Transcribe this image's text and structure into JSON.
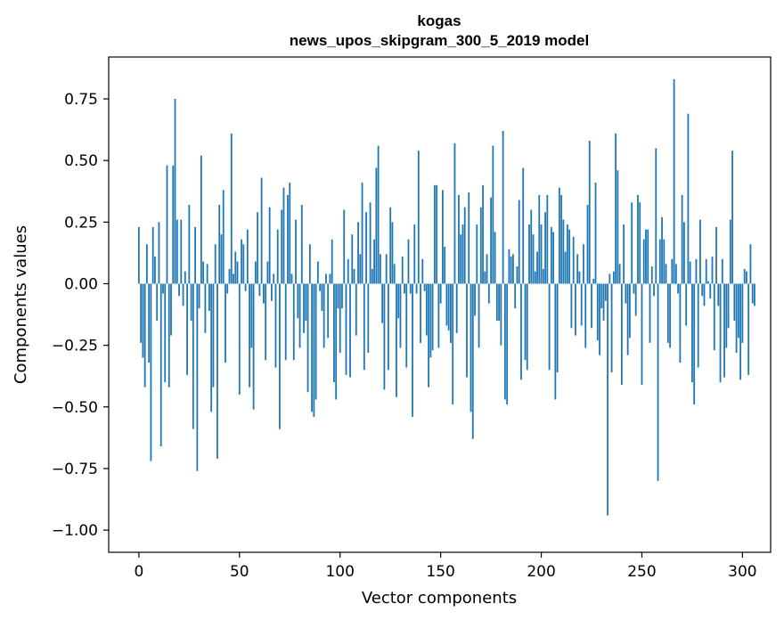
{
  "chart_data": {
    "type": "bar",
    "title_line1": "kogas",
    "title_line2": "news_upos_skipgram_300_5_2019 model",
    "xlabel": "Vector components",
    "ylabel": "Components values",
    "xlim": [
      -15,
      314
    ],
    "ylim": [
      -1.09,
      0.92
    ],
    "x_ticks": [
      0,
      50,
      100,
      150,
      200,
      250,
      300
    ],
    "y_ticks": [
      -1.0,
      -0.75,
      -0.5,
      -0.25,
      0.0,
      0.25,
      0.5,
      0.75
    ],
    "y_tick_labels": [
      "−1.00",
      "−0.75",
      "−0.50",
      "−0.25",
      "0.00",
      "0.25",
      "0.50",
      "0.75"
    ],
    "x_tick_labels": [
      "0",
      "50",
      "100",
      "150",
      "200",
      "250",
      "300"
    ],
    "bar_color": "#1f77b4",
    "grid": false,
    "values": [
      0.23,
      -0.24,
      -0.3,
      -0.42,
      0.16,
      -0.32,
      -0.72,
      0.23,
      0.11,
      -0.15,
      0.25,
      -0.66,
      -0.04,
      -0.4,
      0.48,
      -0.42,
      -0.21,
      0.48,
      0.75,
      0.26,
      -0.05,
      0.26,
      -0.09,
      0.05,
      -0.37,
      0.32,
      -0.15,
      -0.59,
      0.23,
      -0.76,
      -0.1,
      0.52,
      0.09,
      -0.2,
      0.08,
      -0.11,
      -0.52,
      -0.42,
      0.16,
      -0.71,
      0.32,
      0.2,
      0.38,
      -0.32,
      -0.04,
      0.06,
      0.61,
      0.04,
      0.13,
      0.09,
      -0.45,
      0.18,
      0.16,
      -0.03,
      0.22,
      -0.42,
      -0.26,
      -0.51,
      0.09,
      0.29,
      -0.05,
      0.43,
      -0.08,
      -0.31,
      0.09,
      0.31,
      -0.07,
      0.04,
      -0.34,
      0.22,
      -0.59,
      0.3,
      0.39,
      -0.31,
      0.36,
      0.41,
      0.04,
      -0.31,
      0.26,
      -0.14,
      -0.26,
      0.32,
      -0.2,
      -0.15,
      -0.44,
      0.16,
      -0.52,
      -0.54,
      -0.47,
      0.09,
      -0.03,
      -0.11,
      -0.26,
      0.04,
      -0.22,
      0.04,
      0.18,
      -0.4,
      -0.47,
      -0.1,
      -0.28,
      -0.1,
      0.3,
      -0.37,
      0.1,
      -0.38,
      0.2,
      0.06,
      -0.21,
      0.25,
      0.12,
      0.41,
      -0.35,
      0.29,
      -0.28,
      0.33,
      0.06,
      0.18,
      0.47,
      0.56,
      0.12,
      -0.16,
      -0.43,
      0.12,
      -0.35,
      0.31,
      0.25,
      0.08,
      -0.46,
      -0.14,
      -0.26,
      0.11,
      -0.04,
      -0.34,
      0.18,
      -0.04,
      -0.54,
      0.24,
      -0.04,
      0.54,
      -0.24,
      0.1,
      -0.03,
      -0.21,
      -0.42,
      -0.3,
      -0.27,
      0.4,
      0.4,
      -0.26,
      -0.08,
      0.38,
      0.15,
      -0.17,
      -0.19,
      -0.24,
      -0.49,
      0.57,
      -0.2,
      0.36,
      0.2,
      0.24,
      0.31,
      -0.38,
      0.37,
      -0.52,
      -0.63,
      -0.13,
      0.24,
      -0.26,
      0.31,
      0.4,
      0.05,
      0.12,
      -0.08,
      0.35,
      0.56,
      0.21,
      -0.15,
      -0.15,
      -0.25,
      0.62,
      -0.47,
      -0.49,
      0.14,
      0.11,
      0.12,
      -0.1,
      0.07,
      0.34,
      -0.39,
      0.47,
      -0.31,
      -0.35,
      0.24,
      0.3,
      0.2,
      0.05,
      0.13,
      0.36,
      0.24,
      0.06,
      0.29,
      0.36,
      -0.35,
      0.23,
      0.21,
      -0.47,
      -0.36,
      0.39,
      0.36,
      0.26,
      0.13,
      0.24,
      0.22,
      -0.18,
      0.19,
      -0.21,
      0.12,
      0.05,
      -0.17,
      0.16,
      -0.26,
      0.32,
      0.58,
      -0.18,
      0.02,
      0.41,
      -0.23,
      -0.29,
      -0.1,
      -0.15,
      -0.07,
      -0.94,
      0.04,
      -0.36,
      0.05,
      0.61,
      0.46,
      0.08,
      -0.41,
      0.24,
      -0.08,
      -0.29,
      -0.22,
      0.33,
      -0.04,
      -0.13,
      0.36,
      0.33,
      -0.41,
      0.18,
      0.22,
      0.22,
      -0.24,
      0.07,
      -0.05,
      0.55,
      -0.8,
      0.18,
      0.27,
      0.18,
      0.08,
      -0.24,
      -0.26,
      0.1,
      0.83,
      0.08,
      -0.04,
      -0.32,
      0.36,
      0.25,
      -0.17,
      0.69,
      0.09,
      -0.4,
      -0.49,
      0.1,
      -0.34,
      0.26,
      -0.05,
      -0.09,
      0.1,
      0.01,
      -0.06,
      0.11,
      -0.27,
      0.23,
      -0.09,
      -0.4,
      0.1,
      -0.38,
      -0.26,
      -0.18,
      0.26,
      0.54,
      -0.15,
      -0.28,
      -0.22,
      -0.39,
      -0.24,
      0.06,
      0.05,
      -0.37,
      0.16,
      -0.08,
      -0.09
    ]
  }
}
